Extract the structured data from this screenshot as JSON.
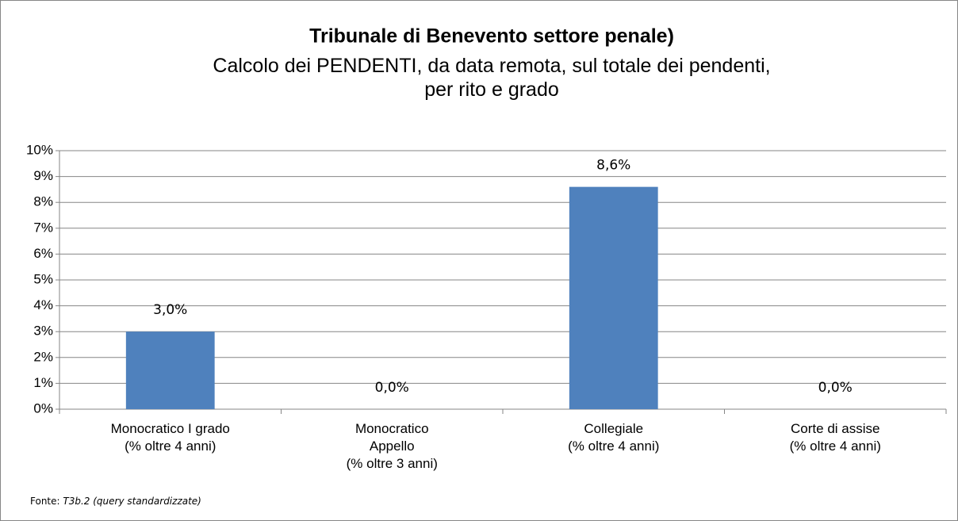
{
  "chart_data": {
    "type": "bar",
    "title": "Tribunale di Benevento settore penale)",
    "subtitle": "Calcolo dei PENDENTI, da data remota, sul totale dei pendenti,\nper rito e grado",
    "categories": [
      "Monocratico I grado\n(% oltre 4 anni)",
      "Monocratico\nAppello\n(% oltre 3 anni)",
      "Collegiale\n(% oltre 4 anni)",
      "Corte di assise\n(% oltre 4 anni)"
    ],
    "values": [
      3.0,
      0.0,
      8.6,
      0.0
    ],
    "value_labels": [
      "3,0%",
      "0,0%",
      "8,6%",
      "0,0%"
    ],
    "color": "#4f81bd",
    "ylim": [
      0,
      10
    ],
    "yticks": [
      {
        "value": 0,
        "label": "0%"
      },
      {
        "value": 1,
        "label": "1%"
      },
      {
        "value": 2,
        "label": "2%"
      },
      {
        "value": 3,
        "label": "3%"
      },
      {
        "value": 4,
        "label": "4%"
      },
      {
        "value": 5,
        "label": "5%"
      },
      {
        "value": 6,
        "label": "6%"
      },
      {
        "value": 7,
        "label": "7%"
      },
      {
        "value": 8,
        "label": "8%"
      },
      {
        "value": 9,
        "label": "9%"
      },
      {
        "value": 10,
        "label": "10%"
      }
    ],
    "grid": true,
    "source": {
      "label": "Fonte:",
      "text": "T3b.2 (query standardizzate)"
    }
  }
}
